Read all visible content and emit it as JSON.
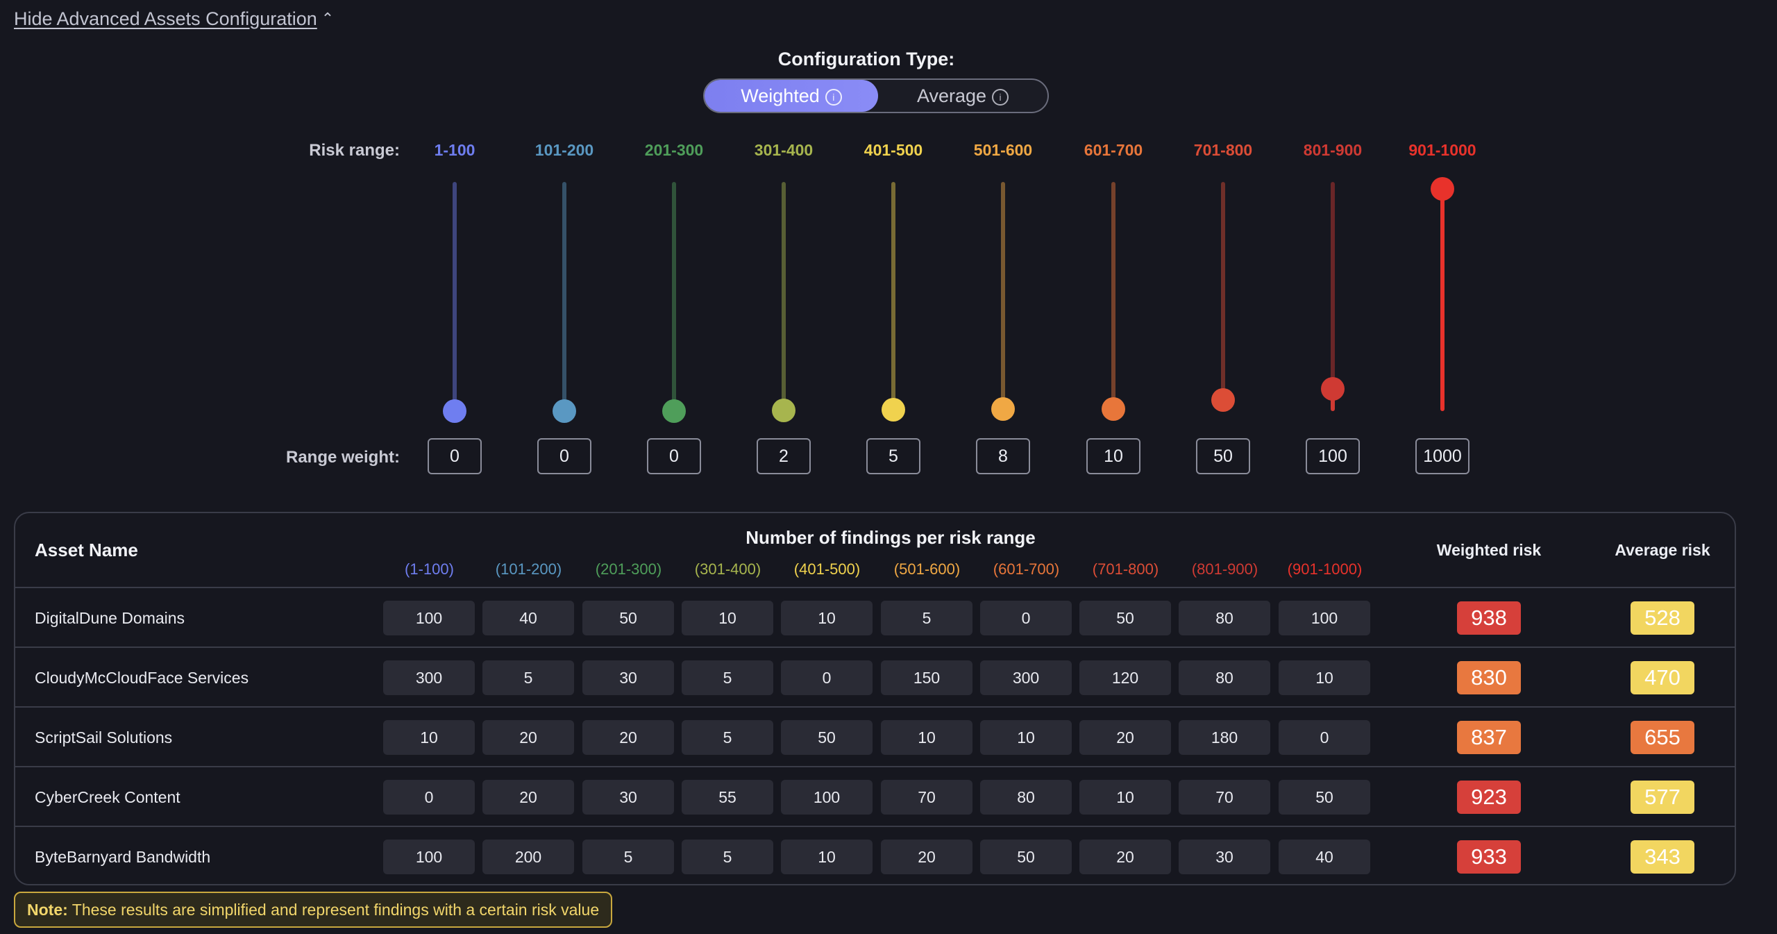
{
  "header": {
    "hide_link": "Hide Advanced Assets Configuration"
  },
  "config": {
    "title": "Configuration Type:",
    "options": [
      "Weighted",
      "Average"
    ],
    "selected": "Weighted",
    "info_icon": "info-icon"
  },
  "labels": {
    "risk_range": "Risk range:",
    "range_weight": "Range weight:"
  },
  "ranges": [
    {
      "label": "1-100",
      "header": "(1-100)",
      "weight": "0",
      "color": "#6f7ef0",
      "level": 0
    },
    {
      "label": "101-200",
      "header": "(101-200)",
      "weight": "0",
      "color": "#5a98c2",
      "level": 0
    },
    {
      "label": "201-300",
      "header": "(201-300)",
      "weight": "0",
      "color": "#4f9e5a",
      "level": 0
    },
    {
      "label": "301-400",
      "header": "(301-400)",
      "weight": "2",
      "color": "#a7b54e",
      "level": 0.002
    },
    {
      "label": "401-500",
      "header": "(401-500)",
      "weight": "5",
      "color": "#f0d24e",
      "level": 0.005
    },
    {
      "label": "501-600",
      "header": "(501-600)",
      "weight": "8",
      "color": "#f0a844",
      "level": 0.008
    },
    {
      "label": "601-700",
      "header": "(601-700)",
      "weight": "10",
      "color": "#e8763a",
      "level": 0.01
    },
    {
      "label": "701-800",
      "header": "(701-800)",
      "weight": "50",
      "color": "#dc4d36",
      "level": 0.05
    },
    {
      "label": "801-900",
      "header": "(801-900)",
      "weight": "100",
      "color": "#cf3a33",
      "level": 0.1
    },
    {
      "label": "901-1000",
      "header": "(901-1000)",
      "weight": "1000",
      "color": "#e8322b",
      "level": 1
    }
  ],
  "table": {
    "asset_header": "Asset Name",
    "findings_header": "Number of findings per risk range",
    "weighted_header": "Weighted risk",
    "average_header": "Average risk",
    "rows": [
      {
        "name": "DigitalDune Domains",
        "counts": [
          "100",
          "40",
          "50",
          "10",
          "10",
          "5",
          "0",
          "50",
          "80",
          "100"
        ],
        "weighted": "938",
        "weighted_color": "#d6403a",
        "average": "528",
        "average_color": "#f2d660"
      },
      {
        "name": "CloudyMcCloudFace Services",
        "counts": [
          "300",
          "5",
          "30",
          "5",
          "0",
          "150",
          "300",
          "120",
          "80",
          "10"
        ],
        "weighted": "830",
        "weighted_color": "#e8783f",
        "average": "470",
        "average_color": "#f2d660"
      },
      {
        "name": "ScriptSail Solutions",
        "counts": [
          "10",
          "20",
          "20",
          "5",
          "50",
          "10",
          "10",
          "20",
          "180",
          "0"
        ],
        "weighted": "837",
        "weighted_color": "#e8783f",
        "average": "655",
        "average_color": "#e8783f"
      },
      {
        "name": "CyberCreek Content",
        "counts": [
          "0",
          "20",
          "30",
          "55",
          "100",
          "70",
          "80",
          "10",
          "70",
          "50"
        ],
        "weighted": "923",
        "weighted_color": "#d6403a",
        "average": "577",
        "average_color": "#f2d660"
      },
      {
        "name": "ByteBarnyard Bandwidth",
        "counts": [
          "100",
          "200",
          "5",
          "5",
          "10",
          "20",
          "50",
          "20",
          "30",
          "40"
        ],
        "weighted": "933",
        "weighted_color": "#d6403a",
        "average": "343",
        "average_color": "#f2d660"
      }
    ]
  },
  "note": {
    "label": "Note:",
    "text": "These results are simplified and represent findings with a certain risk value"
  }
}
